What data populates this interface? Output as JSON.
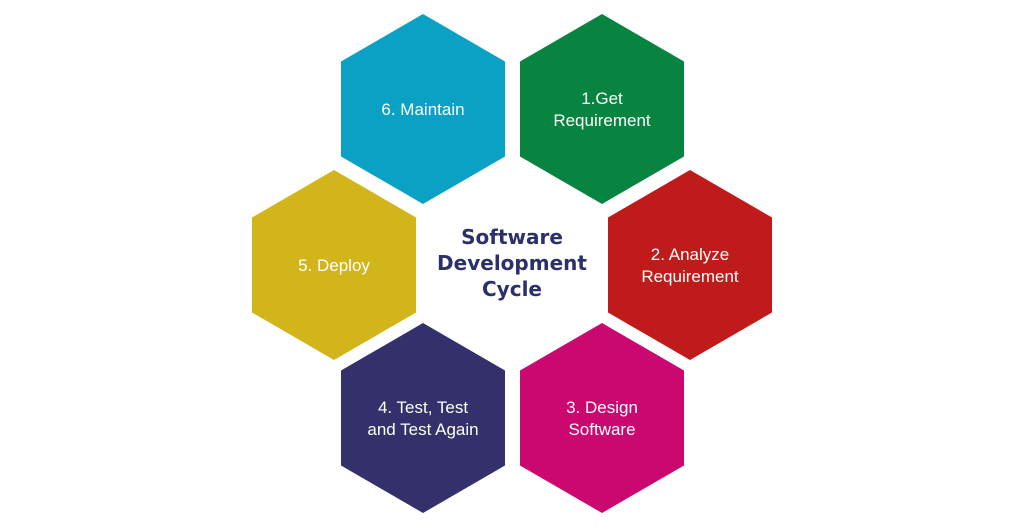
{
  "diagram": {
    "center_title": [
      "Software",
      "Development",
      "Cycle"
    ],
    "steps": [
      {
        "id": "maintain",
        "lines": [
          "6. Maintain"
        ],
        "color": "#0aa1c4"
      },
      {
        "id": "get-requirement",
        "lines": [
          "1.Get",
          "Requirement"
        ],
        "color": "#07843f"
      },
      {
        "id": "deploy",
        "lines": [
          "5. Deploy"
        ],
        "color": "#d2b41b"
      },
      {
        "id": "analyze-requirement",
        "lines": [
          "2. Analyze",
          "Requirement"
        ],
        "color": "#c01b1b"
      },
      {
        "id": "test",
        "lines": [
          "4. Test, Test",
          "and Test Again"
        ],
        "color": "#33306b"
      },
      {
        "id": "design-software",
        "lines": [
          "3. Design",
          "Software"
        ],
        "color": "#cb0870"
      }
    ]
  }
}
